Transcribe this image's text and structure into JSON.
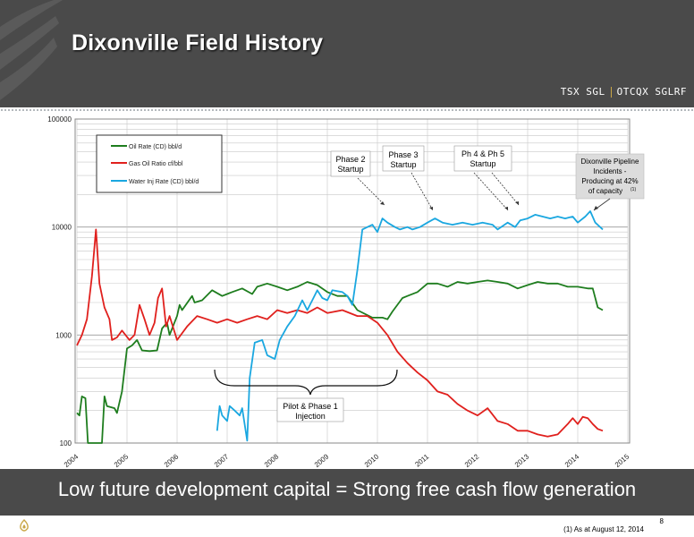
{
  "header": {
    "title": "Dixonville Field History",
    "ticker_tsx": "TSX SGL",
    "ticker_otcqx": "OTCQX SGLRF"
  },
  "footer": {
    "tagline": "Low future development capital = Strong free cash flow generation",
    "page_number": "8",
    "footnote": "(1) As at August 12, 2014"
  },
  "chart_data": {
    "type": "line",
    "title": "",
    "xlabel": "",
    "ylabel": "",
    "yscale": "log",
    "ylim": [
      100,
      100000
    ],
    "xlim": [
      2004,
      2015
    ],
    "x_ticks": [
      "2004",
      "2005",
      "2006",
      "2007",
      "2008",
      "2009",
      "2010",
      "2011",
      "2012",
      "2013",
      "2014",
      "2015"
    ],
    "y_ticks": [
      "100",
      "1000",
      "10000",
      "100000"
    ],
    "grid": true,
    "legend_position": "top-left",
    "series": [
      {
        "name": "Oil Rate (CD) bbl/d",
        "color": "#1e7d1e",
        "points": [
          [
            2004.0,
            190
          ],
          [
            2004.05,
            180
          ],
          [
            2004.1,
            270
          ],
          [
            2004.17,
            260
          ],
          [
            2004.22,
            100
          ],
          [
            2004.5,
            100
          ],
          [
            2004.55,
            270
          ],
          [
            2004.6,
            220
          ],
          [
            2004.75,
            210
          ],
          [
            2004.8,
            190
          ],
          [
            2004.9,
            300
          ],
          [
            2005.0,
            750
          ],
          [
            2005.1,
            800
          ],
          [
            2005.2,
            900
          ],
          [
            2005.3,
            720
          ],
          [
            2005.45,
            710
          ],
          [
            2005.6,
            720
          ],
          [
            2005.7,
            1150
          ],
          [
            2005.8,
            1300
          ],
          [
            2005.85,
            1000
          ],
          [
            2006.0,
            1500
          ],
          [
            2006.05,
            1900
          ],
          [
            2006.1,
            1700
          ],
          [
            2006.3,
            2300
          ],
          [
            2006.35,
            2000
          ],
          [
            2006.5,
            2100
          ],
          [
            2006.7,
            2600
          ],
          [
            2006.9,
            2300
          ],
          [
            2007.1,
            2500
          ],
          [
            2007.3,
            2700
          ],
          [
            2007.5,
            2400
          ],
          [
            2007.6,
            2800
          ],
          [
            2007.8,
            3000
          ],
          [
            2008.0,
            2800
          ],
          [
            2008.2,
            2600
          ],
          [
            2008.4,
            2800
          ],
          [
            2008.6,
            3100
          ],
          [
            2008.8,
            2900
          ],
          [
            2009.0,
            2500
          ],
          [
            2009.2,
            2300
          ],
          [
            2009.4,
            2300
          ],
          [
            2009.6,
            1700
          ],
          [
            2009.9,
            1450
          ],
          [
            2010.1,
            1450
          ],
          [
            2010.2,
            1400
          ],
          [
            2010.3,
            1650
          ],
          [
            2010.5,
            2200
          ],
          [
            2010.6,
            2300
          ],
          [
            2010.8,
            2500
          ],
          [
            2011.0,
            3000
          ],
          [
            2011.2,
            3000
          ],
          [
            2011.4,
            2800
          ],
          [
            2011.6,
            3100
          ],
          [
            2011.8,
            3000
          ],
          [
            2012.0,
            3100
          ],
          [
            2012.2,
            3200
          ],
          [
            2012.4,
            3100
          ],
          [
            2012.6,
            3000
          ],
          [
            2012.8,
            2700
          ],
          [
            2013.0,
            2900
          ],
          [
            2013.2,
            3100
          ],
          [
            2013.4,
            3000
          ],
          [
            2013.6,
            3000
          ],
          [
            2013.8,
            2800
          ],
          [
            2014.0,
            2800
          ],
          [
            2014.2,
            2700
          ],
          [
            2014.3,
            2700
          ],
          [
            2014.4,
            1800
          ],
          [
            2014.5,
            1700
          ]
        ]
      },
      {
        "name": "Gas Oil Ratio cf/bbl",
        "color": "#e0201d",
        "points": [
          [
            2004.0,
            800
          ],
          [
            2004.1,
            1000
          ],
          [
            2004.2,
            1400
          ],
          [
            2004.3,
            3500
          ],
          [
            2004.38,
            9500
          ],
          [
            2004.45,
            3000
          ],
          [
            2004.55,
            1800
          ],
          [
            2004.65,
            1400
          ],
          [
            2004.7,
            900
          ],
          [
            2004.8,
            950
          ],
          [
            2004.9,
            1100
          ],
          [
            2005.05,
            900
          ],
          [
            2005.15,
            1000
          ],
          [
            2005.25,
            1900
          ],
          [
            2005.35,
            1400
          ],
          [
            2005.45,
            1000
          ],
          [
            2005.55,
            1300
          ],
          [
            2005.62,
            2200
          ],
          [
            2005.7,
            2700
          ],
          [
            2005.78,
            1200
          ],
          [
            2005.85,
            1500
          ],
          [
            2006.0,
            900
          ],
          [
            2006.2,
            1200
          ],
          [
            2006.4,
            1500
          ],
          [
            2006.6,
            1400
          ],
          [
            2006.8,
            1300
          ],
          [
            2007.0,
            1400
          ],
          [
            2007.2,
            1300
          ],
          [
            2007.4,
            1400
          ],
          [
            2007.6,
            1500
          ],
          [
            2007.8,
            1400
          ],
          [
            2008.0,
            1700
          ],
          [
            2008.2,
            1600
          ],
          [
            2008.4,
            1700
          ],
          [
            2008.6,
            1600
          ],
          [
            2008.8,
            1800
          ],
          [
            2009.0,
            1600
          ],
          [
            2009.3,
            1700
          ],
          [
            2009.6,
            1500
          ],
          [
            2009.8,
            1500
          ],
          [
            2010.0,
            1300
          ],
          [
            2010.2,
            1000
          ],
          [
            2010.4,
            700
          ],
          [
            2010.6,
            550
          ],
          [
            2010.8,
            450
          ],
          [
            2011.0,
            380
          ],
          [
            2011.2,
            300
          ],
          [
            2011.4,
            280
          ],
          [
            2011.6,
            230
          ],
          [
            2011.8,
            200
          ],
          [
            2012.0,
            180
          ],
          [
            2012.2,
            210
          ],
          [
            2012.4,
            160
          ],
          [
            2012.6,
            150
          ],
          [
            2012.8,
            130
          ],
          [
            2013.0,
            130
          ],
          [
            2013.2,
            120
          ],
          [
            2013.4,
            115
          ],
          [
            2013.6,
            120
          ],
          [
            2013.8,
            150
          ],
          [
            2013.9,
            170
          ],
          [
            2014.0,
            150
          ],
          [
            2014.1,
            175
          ],
          [
            2014.2,
            170
          ],
          [
            2014.3,
            150
          ],
          [
            2014.4,
            135
          ],
          [
            2014.5,
            130
          ]
        ]
      },
      {
        "name": "Water Inj Rate (CD) bbl/d",
        "color": "#1aa7e0",
        "points": [
          [
            2006.8,
            130
          ],
          [
            2006.85,
            220
          ],
          [
            2006.9,
            180
          ],
          [
            2007.0,
            160
          ],
          [
            2007.05,
            220
          ],
          [
            2007.15,
            200
          ],
          [
            2007.25,
            180
          ],
          [
            2007.3,
            210
          ],
          [
            2007.4,
            105
          ],
          [
            2007.45,
            400
          ],
          [
            2007.55,
            850
          ],
          [
            2007.7,
            900
          ],
          [
            2007.8,
            650
          ],
          [
            2007.95,
            600
          ],
          [
            2008.05,
            900
          ],
          [
            2008.2,
            1200
          ],
          [
            2008.35,
            1500
          ],
          [
            2008.5,
            2100
          ],
          [
            2008.6,
            1700
          ],
          [
            2008.7,
            2100
          ],
          [
            2008.8,
            2600
          ],
          [
            2008.9,
            2200
          ],
          [
            2009.0,
            2100
          ],
          [
            2009.1,
            2600
          ],
          [
            2009.3,
            2500
          ],
          [
            2009.4,
            2300
          ],
          [
            2009.5,
            1900
          ],
          [
            2009.6,
            4000
          ],
          [
            2009.7,
            9500
          ],
          [
            2009.8,
            10000
          ],
          [
            2009.9,
            10500
          ],
          [
            2010.0,
            9000
          ],
          [
            2010.1,
            12000
          ],
          [
            2010.2,
            11000
          ],
          [
            2010.35,
            10000
          ],
          [
            2010.45,
            9500
          ],
          [
            2010.6,
            10000
          ],
          [
            2010.7,
            9500
          ],
          [
            2010.85,
            10000
          ],
          [
            2011.0,
            11000
          ],
          [
            2011.15,
            12000
          ],
          [
            2011.3,
            11000
          ],
          [
            2011.5,
            10500
          ],
          [
            2011.7,
            11000
          ],
          [
            2011.9,
            10500
          ],
          [
            2012.1,
            11000
          ],
          [
            2012.3,
            10500
          ],
          [
            2012.4,
            9500
          ],
          [
            2012.6,
            11000
          ],
          [
            2012.75,
            10000
          ],
          [
            2012.85,
            11500
          ],
          [
            2013.0,
            12000
          ],
          [
            2013.15,
            13000
          ],
          [
            2013.3,
            12500
          ],
          [
            2013.45,
            12000
          ],
          [
            2013.6,
            12500
          ],
          [
            2013.75,
            12000
          ],
          [
            2013.9,
            12500
          ],
          [
            2014.0,
            11000
          ],
          [
            2014.15,
            12500
          ],
          [
            2014.25,
            14000
          ],
          [
            2014.35,
            11000
          ],
          [
            2014.5,
            9500
          ]
        ]
      }
    ],
    "annotations": [
      {
        "id": "phase2",
        "label_lines": [
          "Phase 2",
          "Startup"
        ]
      },
      {
        "id": "phase3",
        "label_lines": [
          "Phase 3",
          "Startup"
        ]
      },
      {
        "id": "ph45",
        "label_lines": [
          "Ph 4 & Ph 5",
          "Startup"
        ]
      },
      {
        "id": "pipeline",
        "label_lines": [
          "Dixonville Pipeline",
          "Incidents -",
          "Producing at 42%",
          "of capacity"
        ],
        "superscript": "(1)"
      },
      {
        "id": "pilot",
        "label_lines": [
          "Pilot & Phase 1",
          "Injection"
        ]
      }
    ]
  }
}
